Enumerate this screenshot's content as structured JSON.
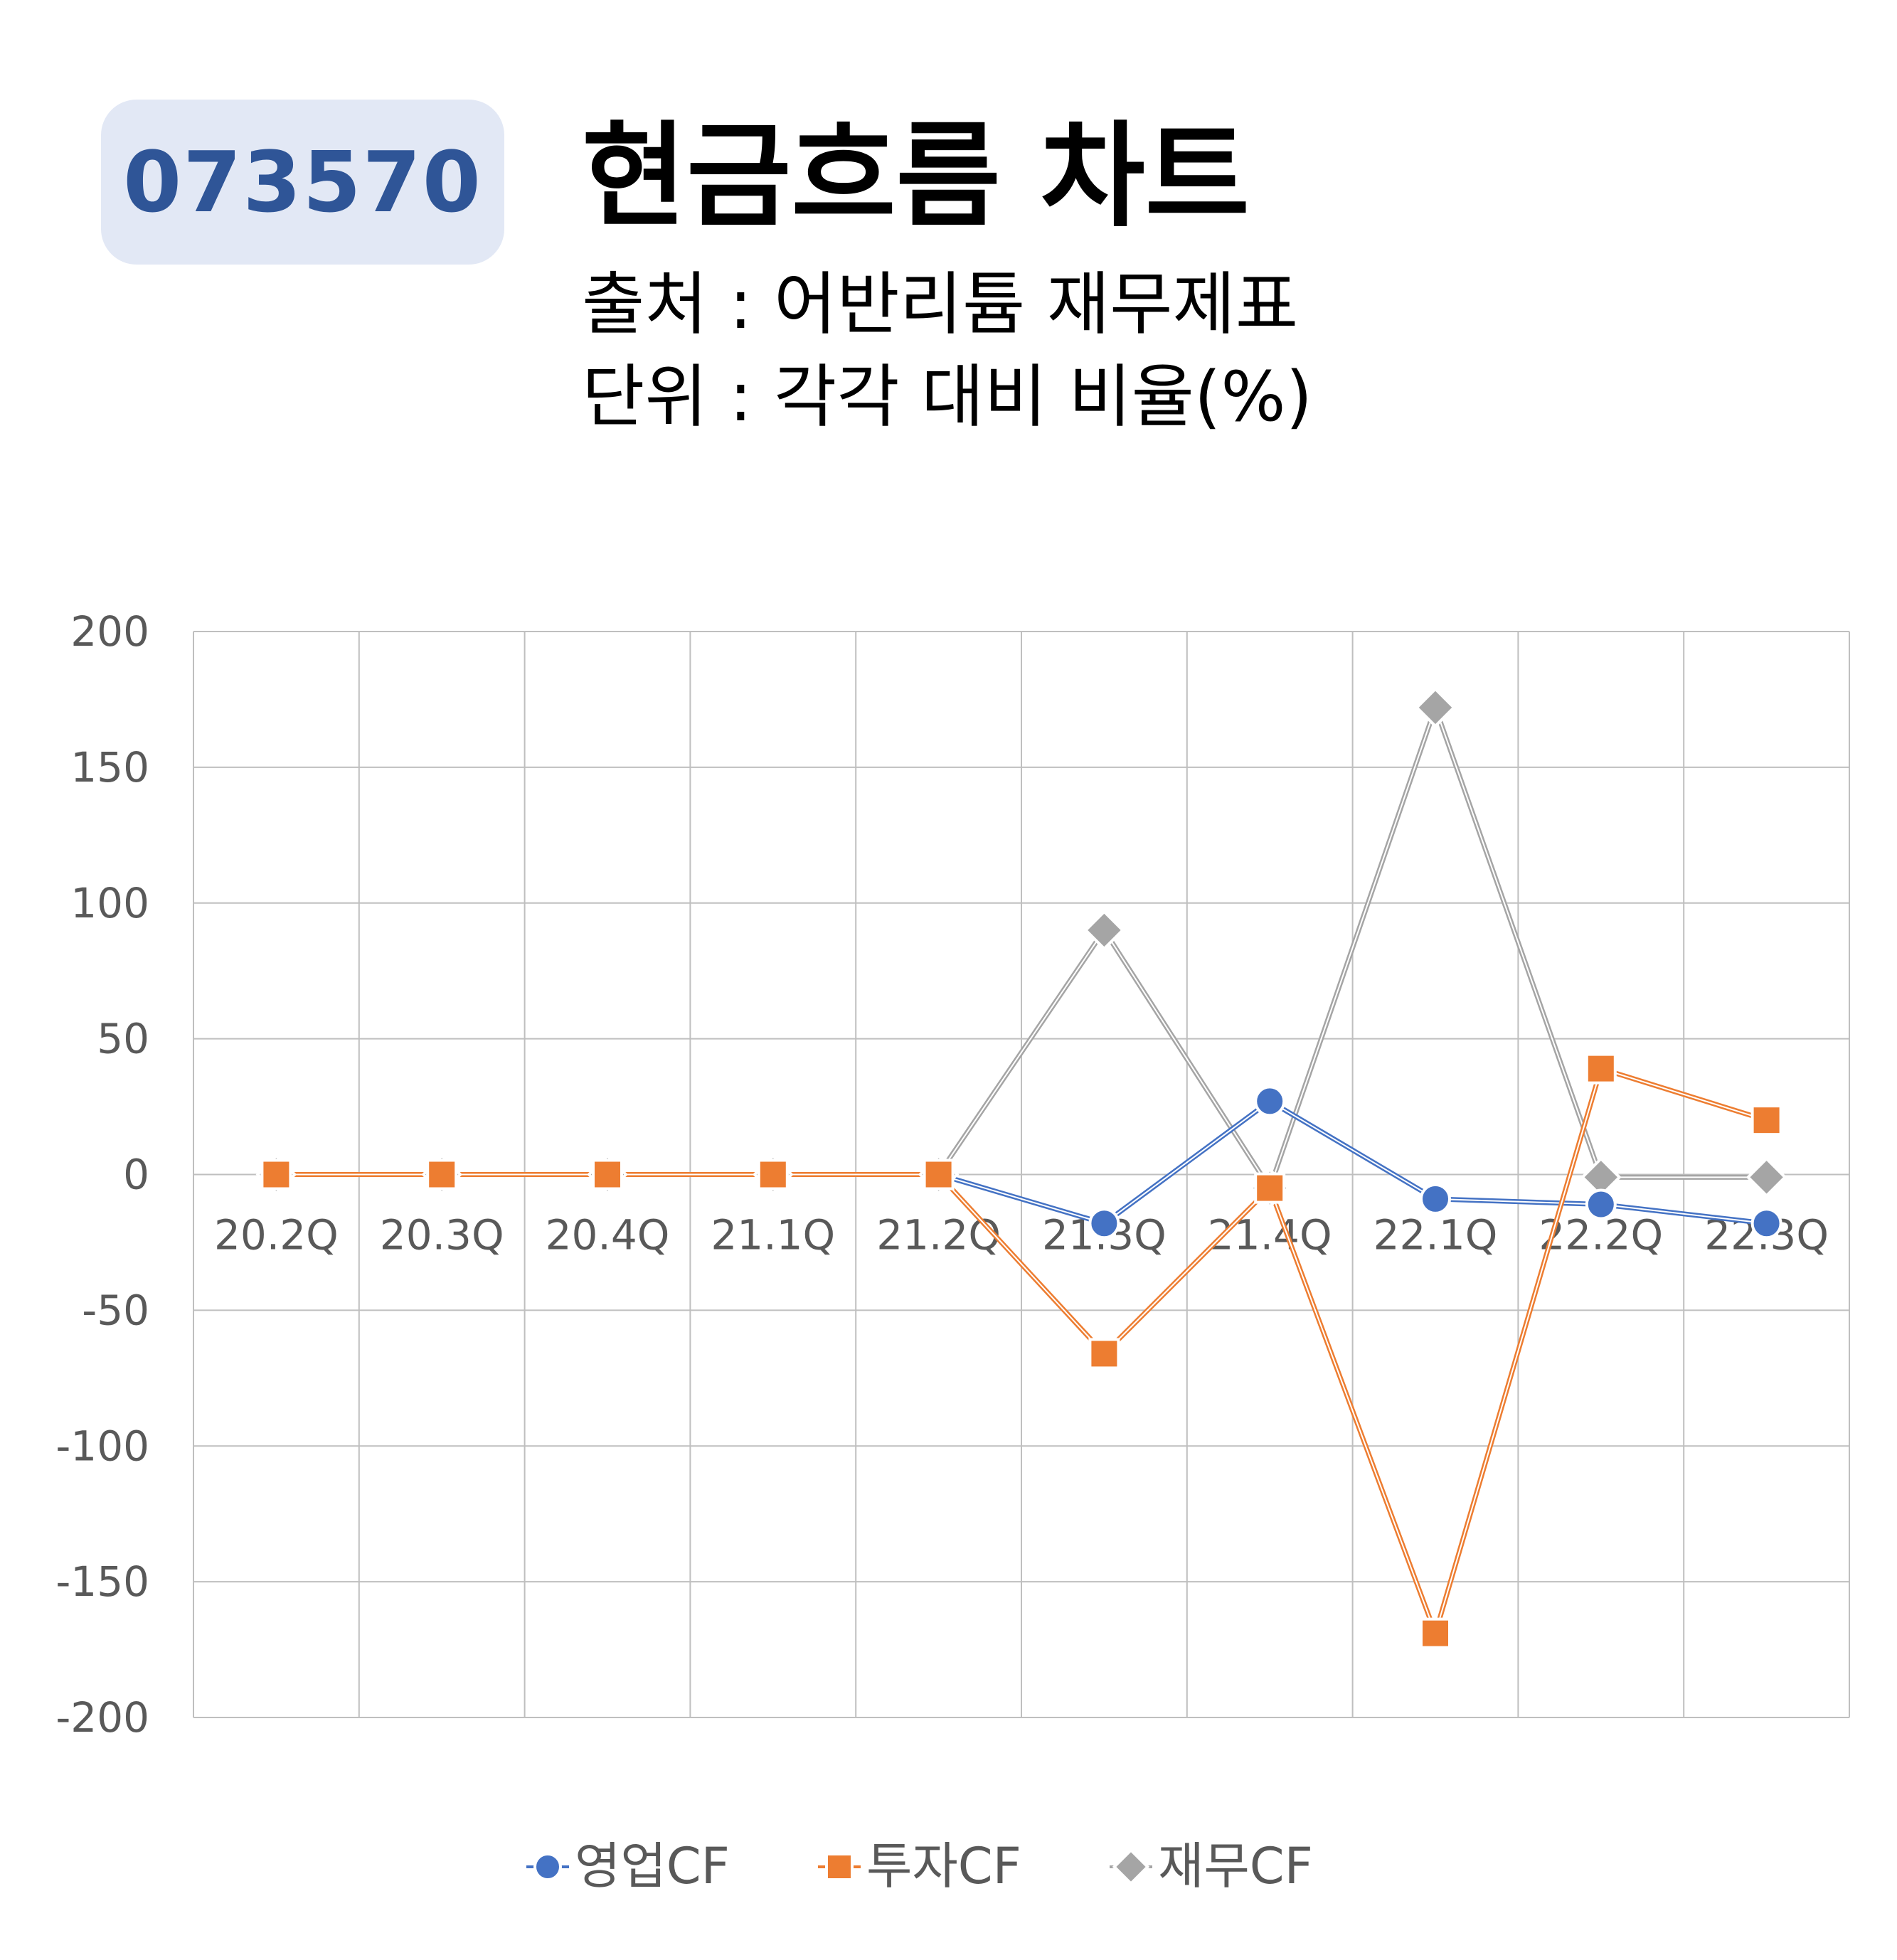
{
  "header": {
    "ticker": "073570",
    "title": "현금흐름 차트",
    "source": "출처 : 어반리튬 재무제표",
    "unit": "단위 : 각각 대비 비율(%)"
  },
  "colors": {
    "badge_bg": "#e2e8f5",
    "badge_text": "#2f5597",
    "operating": "#4472c4",
    "investing": "#ed7d31",
    "financing": "#a5a5a5",
    "grid": "#bfbfbf",
    "axis_text": "#595959"
  },
  "chart_data": {
    "type": "line",
    "categories": [
      "20.2Q",
      "20.3Q",
      "20.4Q",
      "21.1Q",
      "21.2Q",
      "21.3Q",
      "21.4Q",
      "22.1Q",
      "22.2Q",
      "22.3Q"
    ],
    "ylim": [
      -200,
      200
    ],
    "yticks": [
      200,
      150,
      100,
      50,
      0,
      -50,
      -100,
      -150,
      -200
    ],
    "grid": true,
    "legend_position": "bottom",
    "series": [
      {
        "name": "영업CF",
        "marker": "circle",
        "color": "#4472c4",
        "values": [
          0,
          0,
          0,
          0,
          0,
          -18,
          27,
          -9,
          -11,
          -18
        ]
      },
      {
        "name": "투자CF",
        "marker": "square",
        "color": "#ed7d31",
        "values": [
          0,
          0,
          0,
          0,
          0,
          -66,
          -5,
          -169,
          39,
          20
        ]
      },
      {
        "name": "재무CF",
        "marker": "diamond",
        "color": "#a5a5a5",
        "values": [
          0,
          0,
          0,
          0,
          0,
          90,
          -5,
          172,
          -1,
          -1
        ]
      }
    ]
  }
}
